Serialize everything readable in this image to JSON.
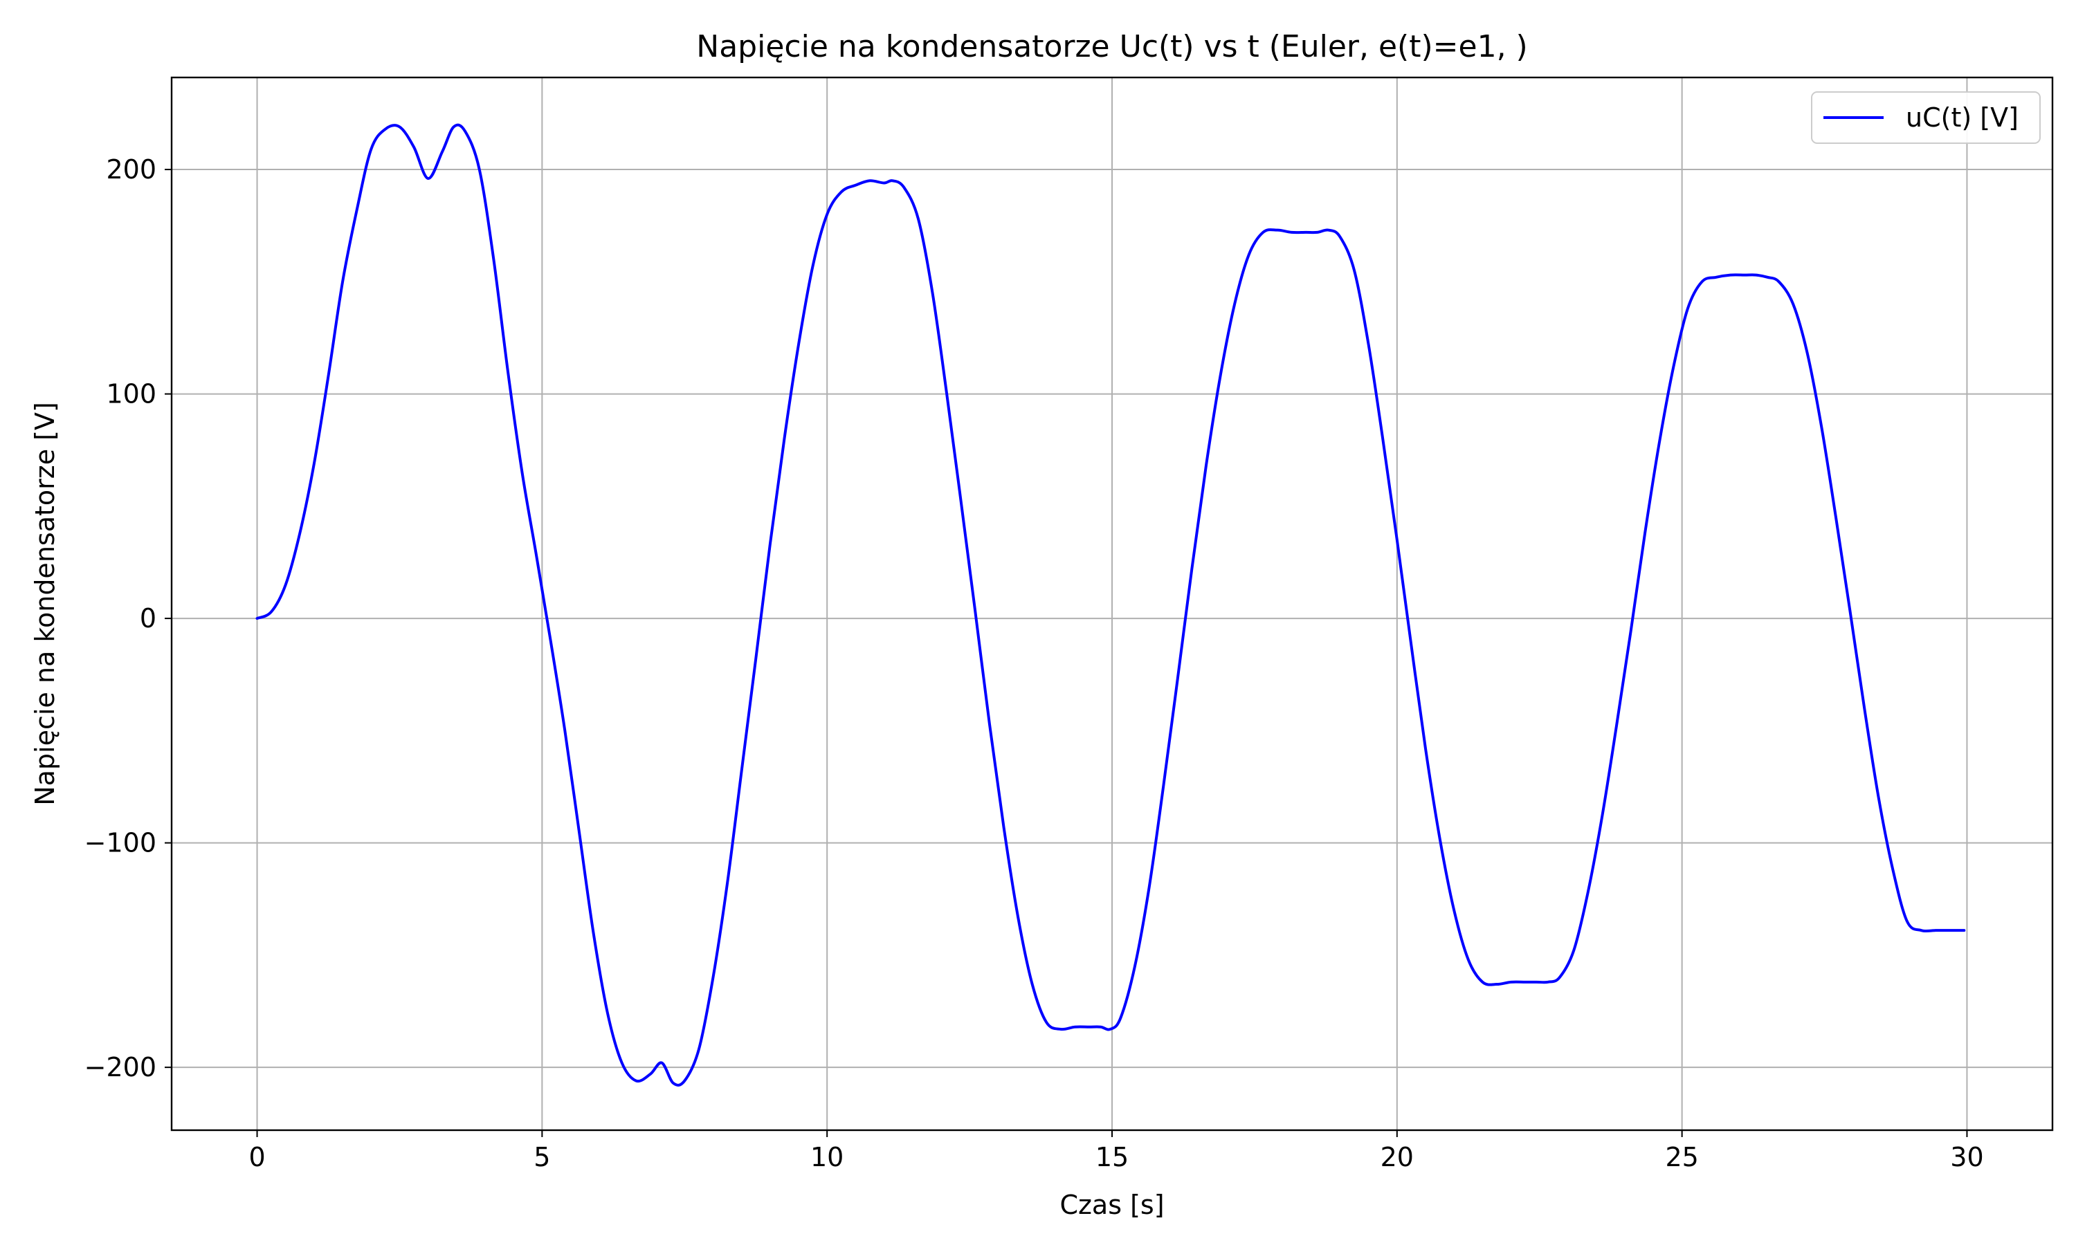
{
  "chart_data": {
    "type": "line",
    "title": "Napięcie na kondensatorze Uc(t) vs t (Euler, e(t)=e1, )",
    "xlabel": "Czas [s]",
    "ylabel": "Napięcie na kondensatorze [V]",
    "xlim": [
      -1.5,
      31.5
    ],
    "ylim": [
      -228,
      241
    ],
    "x_ticks": [
      0,
      5,
      10,
      15,
      20,
      25,
      30
    ],
    "x_tick_labels": [
      "0",
      "5",
      "10",
      "15",
      "20",
      "25",
      "30"
    ],
    "y_ticks": [
      -200,
      -100,
      0,
      100,
      200
    ],
    "y_tick_labels": [
      "−200",
      "−100",
      "0",
      "100",
      "200"
    ],
    "grid": true,
    "legend_position": "top-right",
    "series": [
      {
        "name": "uC(t) [V]",
        "color": "#0000ff",
        "x": [
          0.0,
          0.25,
          0.5,
          0.75,
          1.0,
          1.25,
          1.5,
          1.75,
          2.0,
          2.25,
          2.5,
          2.75,
          3.0,
          3.25,
          3.45,
          3.65,
          3.9,
          4.15,
          4.4,
          4.65,
          4.9,
          5.15,
          5.4,
          5.65,
          5.9,
          6.15,
          6.4,
          6.65,
          6.9,
          7.1,
          7.3,
          7.5,
          7.75,
          8.0,
          8.25,
          8.5,
          8.75,
          9.0,
          9.25,
          9.5,
          9.75,
          10.0,
          10.25,
          10.5,
          10.75,
          11.0,
          11.15,
          11.35,
          11.6,
          11.85,
          12.1,
          12.35,
          12.6,
          12.85,
          13.1,
          13.35,
          13.6,
          13.85,
          14.1,
          14.35,
          14.6,
          14.8,
          14.97,
          15.15,
          15.4,
          15.65,
          15.9,
          16.15,
          16.4,
          16.65,
          16.9,
          17.15,
          17.4,
          17.65,
          17.9,
          18.15,
          18.4,
          18.6,
          18.8,
          19.0,
          19.25,
          19.5,
          19.75,
          20.0,
          20.25,
          20.5,
          20.75,
          21.0,
          21.25,
          21.5,
          21.75,
          22.0,
          22.25,
          22.45,
          22.65,
          22.85,
          23.1,
          23.35,
          23.6,
          23.85,
          24.1,
          24.35,
          24.6,
          24.85,
          25.1,
          25.35,
          25.6,
          25.85,
          26.1,
          26.3,
          26.5,
          26.7,
          26.95,
          27.2,
          27.45,
          27.7,
          27.95,
          28.2,
          28.45,
          28.7,
          28.95,
          29.2,
          29.45,
          29.7,
          29.95
        ],
        "y": [
          0,
          3,
          15,
          38,
          69,
          108,
          150,
          182,
          209,
          218,
          219,
          210,
          196,
          208,
          219,
          217,
          200,
          160,
          110,
          65,
          28,
          -10,
          -50,
          -95,
          -140,
          -176,
          -198,
          -206,
          -203,
          -198,
          -207,
          -206,
          -192,
          -160,
          -118,
          -68,
          -18,
          33,
          80,
          122,
          157,
          180,
          190,
          193,
          195,
          194,
          195,
          192,
          178,
          145,
          100,
          52,
          3,
          -47,
          -93,
          -133,
          -163,
          -180,
          -183,
          -182,
          -182,
          -182,
          -183,
          -178,
          -155,
          -120,
          -75,
          -27,
          22,
          68,
          108,
          140,
          162,
          172,
          173,
          172,
          172,
          172,
          173,
          170,
          155,
          122,
          80,
          35,
          -12,
          -58,
          -98,
          -130,
          -152,
          -162,
          -163,
          -162,
          -162,
          -162,
          -162,
          -160,
          -148,
          -122,
          -88,
          -48,
          -6,
          38,
          78,
          112,
          138,
          150,
          152,
          153,
          153,
          153,
          152,
          150,
          140,
          118,
          85,
          45,
          3,
          -40,
          -80,
          -112,
          -135,
          -139,
          -139,
          -139,
          -139
        ]
      }
    ]
  }
}
